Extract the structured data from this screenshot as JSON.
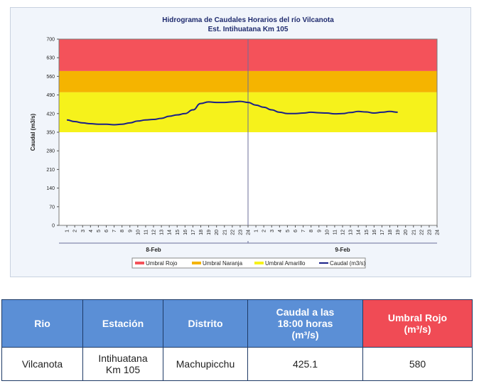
{
  "chart_data": {
    "type": "line",
    "title": "Hidrograma de Caudales Horarios del río Vilcanota",
    "subtitle": "Est. Intihuatana Km 105",
    "ylabel": "Caudal  (m3/s)",
    "ylim": [
      0,
      700
    ],
    "yticks": [
      0,
      70,
      140,
      210,
      280,
      350,
      420,
      490,
      560,
      630,
      700
    ],
    "hour_ticks": [
      1,
      2,
      3,
      4,
      5,
      6,
      7,
      8,
      9,
      10,
      11,
      12,
      13,
      14,
      15,
      16,
      17,
      18,
      19,
      20,
      21,
      22,
      23,
      24,
      1,
      2,
      3,
      4,
      5,
      6,
      7,
      8,
      9,
      10,
      11,
      12,
      13,
      14,
      15,
      16,
      17,
      18,
      19,
      20,
      21,
      22,
      23,
      24
    ],
    "days": [
      "8-Feb",
      "9-Feb"
    ],
    "thresholds": [
      {
        "name": "Umbral Rojo",
        "from": 580,
        "to": 700,
        "color": "#f4525a"
      },
      {
        "name": "Umbral Naranja",
        "from": 500,
        "to": 580,
        "color": "#f5b400"
      },
      {
        "name": "Umbral Amarillo",
        "from": 350,
        "to": 500,
        "color": "#f6f21b"
      }
    ],
    "series": [
      {
        "name": "Caudal (m3/s)",
        "color": "#1a2088",
        "values": [
          396,
          390,
          385,
          382,
          380,
          380,
          378,
          380,
          385,
          392,
          396,
          398,
          402,
          410,
          415,
          420,
          434,
          458,
          464,
          462,
          462,
          464,
          466,
          462,
          452,
          444,
          434,
          425,
          420,
          420,
          422,
          425,
          423,
          422,
          419,
          420,
          424,
          428,
          426,
          422,
          425,
          428,
          425.1
        ]
      }
    ],
    "legend_entries": [
      "Umbral Rojo",
      "Umbral Naranja",
      "Umbral Amarillo",
      "Caudal (m3/s)"
    ],
    "legend_position": "bottom",
    "grid": false
  },
  "table": {
    "headers": {
      "rio": "Rio",
      "estacion": "Estación",
      "distrito": "Distrito",
      "caudal_l1": "Caudal a las",
      "caudal_l2": "18:00 horas",
      "caudal_l3": "(m³/s)",
      "umbral_l1": "Umbral Rojo",
      "umbral_l2": "(m³/s)"
    },
    "row": {
      "rio": "Vilcanota",
      "estacion_l1": "Intihuatana",
      "estacion_l2": "Km 105",
      "distrito": "Machupicchu",
      "caudal": "425.1",
      "umbral": "580"
    }
  }
}
